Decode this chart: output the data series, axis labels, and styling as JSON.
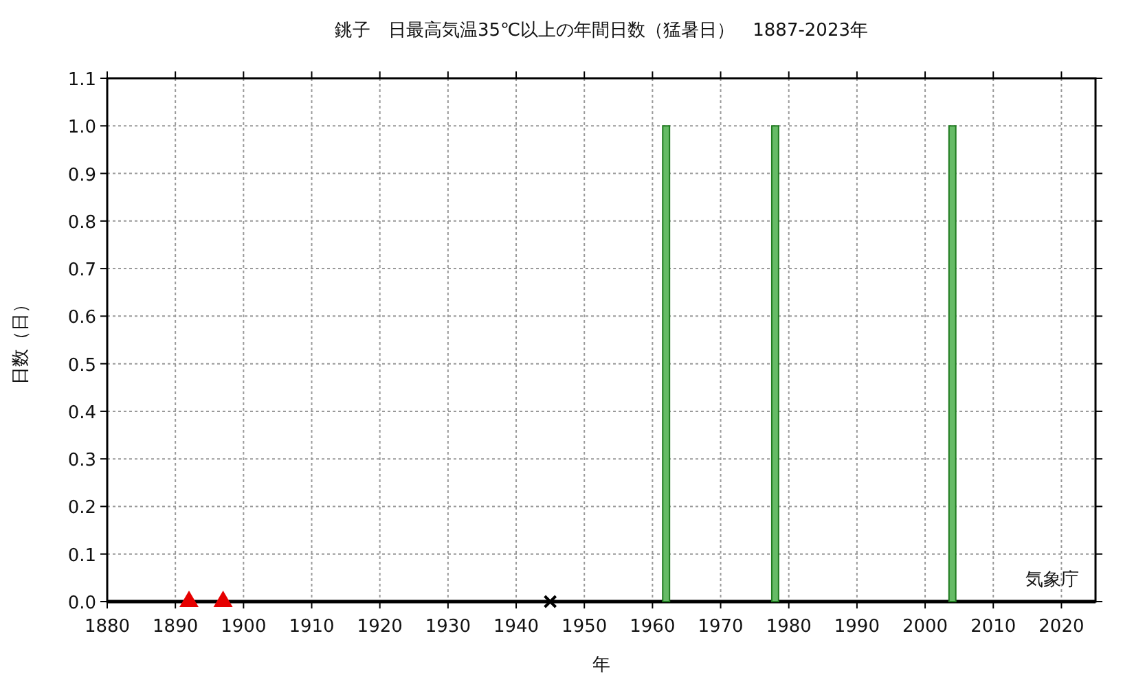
{
  "chart_data": {
    "type": "bar",
    "title": "銚子　日最高気温35℃以上の年間日数（猛暑日）　1887-2023年",
    "xlabel": "年",
    "ylabel": "日数（日）",
    "series": [
      {
        "color": "#66bb66",
        "x": [
          1962,
          1978,
          2004
        ],
        "values": [
          1,
          1,
          1
        ]
      },
      {
        "type": "scatter",
        "marker": "triangle",
        "color": "#e60000",
        "x": [
          1892,
          1897
        ],
        "values": [
          0,
          0
        ]
      },
      {
        "type": "scatter",
        "marker": "cross",
        "color": "#000000",
        "x": [
          1945
        ],
        "values": [
          0
        ]
      }
    ],
    "xlim": [
      1880,
      2025
    ],
    "xticks": [
      1880,
      1890,
      1900,
      1910,
      1920,
      1930,
      1940,
      1950,
      1960,
      1970,
      1980,
      1990,
      2000,
      2010,
      2020
    ],
    "ylim": [
      0,
      1.1
    ],
    "yticks": [
      {
        "value": 0,
        "label": "0.0"
      },
      {
        "value": 0.1,
        "label": "0.1"
      },
      {
        "value": 0.2,
        "label": "0.2"
      },
      {
        "value": 0.3,
        "label": "0.3"
      },
      {
        "value": 0.4,
        "label": "0.4"
      },
      {
        "value": 0.5,
        "label": "0.5"
      },
      {
        "value": 0.6,
        "label": "0.6"
      },
      {
        "value": 0.7,
        "label": "0.7"
      },
      {
        "value": 0.8,
        "label": "0.8"
      },
      {
        "value": 0.9,
        "label": "0.9"
      },
      {
        "value": 1,
        "label": "1.0"
      },
      {
        "value": 1.1,
        "label": "1.1"
      }
    ],
    "grid": true,
    "annotations": [
      "気象庁"
    ]
  }
}
